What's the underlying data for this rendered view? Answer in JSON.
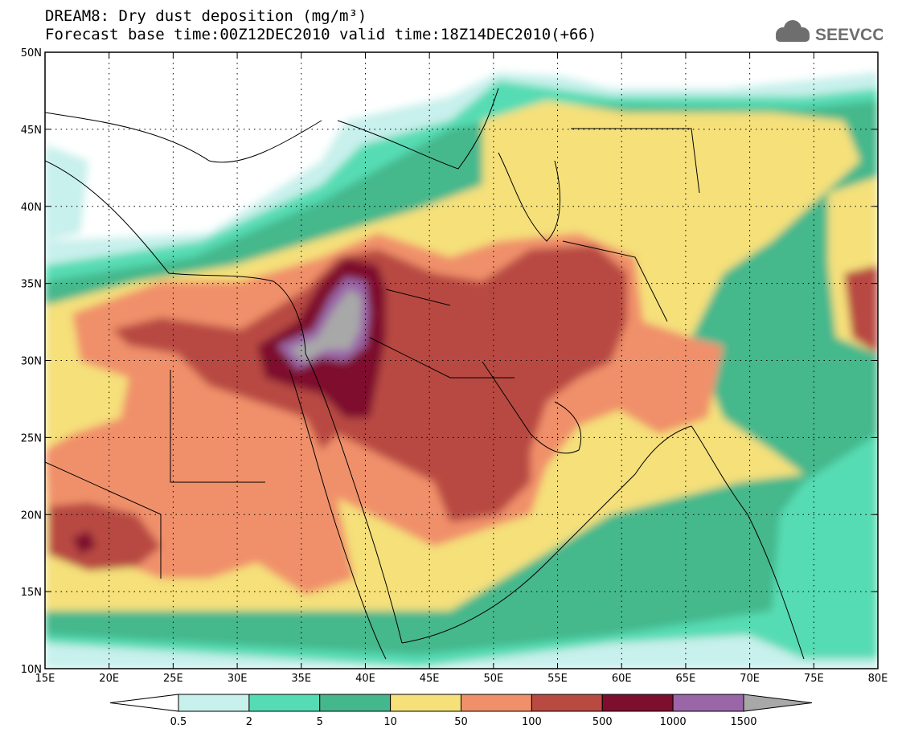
{
  "header": {
    "title_line1": "DREAM8: Dry dust deposition (mg/m³)",
    "title_line2": "Forecast base time:00Z12DEC2010 valid time:18Z14DEC2010(+66)",
    "logo_text": "SEEVCCC"
  },
  "map": {
    "lon_range": [
      15,
      80
    ],
    "lat_range": [
      10,
      50
    ],
    "lon_ticks": [
      "15E",
      "20E",
      "25E",
      "30E",
      "35E",
      "40E",
      "45E",
      "50E",
      "55E",
      "60E",
      "65E",
      "70E",
      "75E",
      "80E"
    ],
    "lat_ticks": [
      "10N",
      "15N",
      "20N",
      "25N",
      "30N",
      "35N",
      "40N",
      "45N",
      "50N"
    ],
    "grid": "dotted"
  },
  "legend": {
    "labels": [
      "0.5",
      "2",
      "5",
      "10",
      "50",
      "100",
      "500",
      "1000",
      "1500"
    ],
    "colors": [
      "#c8f0ec",
      "#56dcb4",
      "#44b88c",
      "#f5e07a",
      "#f0906a",
      "#b84a42",
      "#7e0e2e",
      "#9a66a8",
      "#a8a8a8"
    ],
    "below_color": "#ffffff"
  }
}
